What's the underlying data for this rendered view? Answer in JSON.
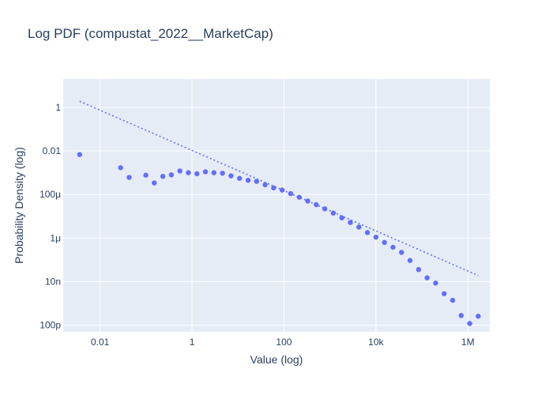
{
  "chart_data": {
    "type": "scatter",
    "title": "Log PDF (compustat_2022__MarketCap)",
    "xlabel": "Value (log)",
    "ylabel": "Probability Density (log)",
    "x_scale": "log",
    "y_scale": "log",
    "xlim": [
      0.00158,
      3000000
    ],
    "ylim": [
      5e-11,
      20
    ],
    "grid": true,
    "legend": "none",
    "colors": {
      "series": "#636efa",
      "plot_bg": "#e5ecf6",
      "grid": "#ffffff",
      "text": "#2a3f5f"
    },
    "x_ticks": [
      {
        "value": 0.01,
        "label": "0.01"
      },
      {
        "value": 1,
        "label": "1"
      },
      {
        "value": 100,
        "label": "100"
      },
      {
        "value": 10000,
        "label": "10k"
      },
      {
        "value": 1000000,
        "label": "1M"
      }
    ],
    "y_ticks": [
      {
        "value": 1,
        "label": "1"
      },
      {
        "value": 0.01,
        "label": "0.01"
      },
      {
        "value": 0.0001,
        "label": "100μ"
      },
      {
        "value": 1e-06,
        "label": "1μ"
      },
      {
        "value": 1e-08,
        "label": "10n"
      },
      {
        "value": 1e-10,
        "label": "100p"
      }
    ],
    "series": [
      {
        "mode": "markers",
        "x": [
          0.0036,
          0.028,
          0.043,
          0.099,
          0.151,
          0.232,
          0.355,
          0.545,
          0.835,
          1.28,
          1.96,
          3.0,
          4.6,
          7.05,
          10.8,
          16.6,
          25.4,
          38.9,
          59.6,
          91.4,
          140,
          215,
          329,
          504,
          773,
          1185,
          1815,
          2780,
          4265,
          6535,
          10020,
          15350,
          23500,
          36050,
          55250,
          84700,
          129800,
          198900,
          304800,
          467200,
          716000,
          1097000,
          1680000
        ],
        "y": [
          0.0068,
          0.0017,
          0.00061,
          0.00077,
          0.00034,
          0.00068,
          0.0008,
          0.0012,
          0.001,
          0.0009,
          0.0011,
          0.001,
          0.00095,
          0.00072,
          0.00055,
          0.00045,
          0.0004,
          0.00028,
          0.0002,
          0.00016,
          0.00011,
          7.5e-05,
          5e-05,
          3.4e-05,
          2.2e-05,
          1.4e-05,
          8.5e-06,
          5.2e-06,
          3.2e-06,
          1.8e-06,
          1.1e-06,
          6.3e-07,
          3.8e-07,
          2.2e-07,
          9.4e-08,
          3.6e-08,
          1.5e-08,
          8.6e-09,
          2.8e-09,
          1.4e-09,
          2.8e-10,
          1.2e-10,
          2.6e-10
        ]
      },
      {
        "mode": "lines",
        "dash": "dot",
        "x": [
          0.0036,
          1680000
        ],
        "y": [
          1.9,
          1.9e-08
        ]
      }
    ]
  }
}
